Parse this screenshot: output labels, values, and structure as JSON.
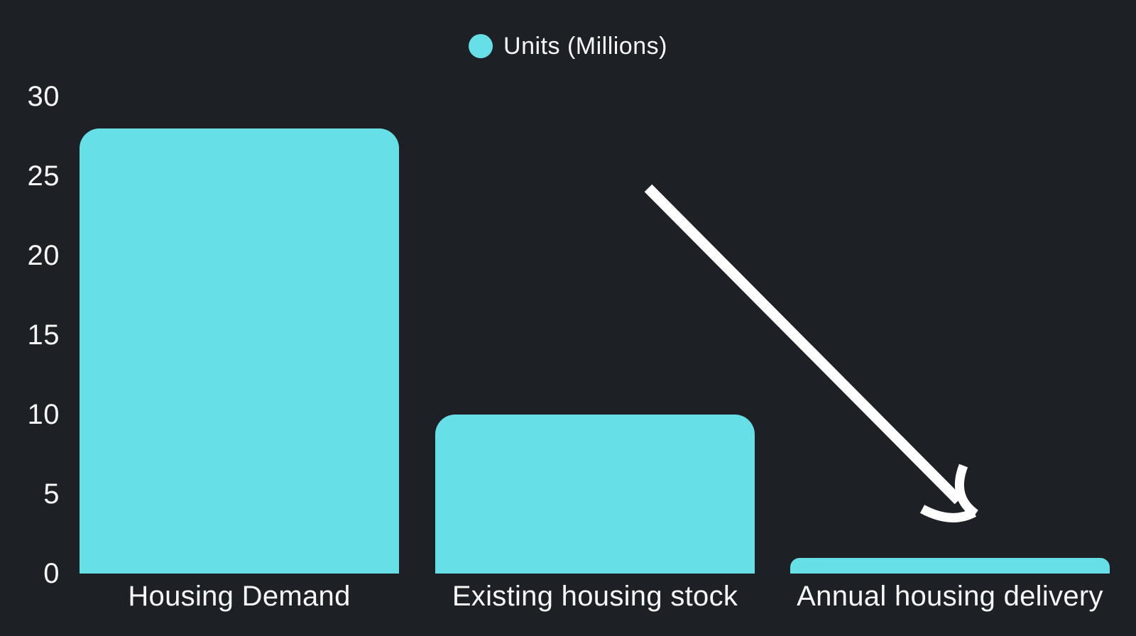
{
  "page": {
    "background_color": "#1d2126",
    "text_color": "#f7f7f7",
    "accent_color": "#66e0e6",
    "arrow_color": "#ffffff"
  },
  "chart_data": {
    "type": "bar",
    "title": "",
    "xlabel": "",
    "ylabel": "",
    "legend": {
      "label": "Units (Millions)",
      "marker_color": "#66e0e6",
      "position": "top-center"
    },
    "categories": [
      "Housing Demand",
      "Existing housing stock",
      "Annual housing delivery"
    ],
    "values": [
      28,
      10,
      1
    ],
    "bar_color": "#66e0e6",
    "ylim": [
      0,
      30
    ],
    "yticks": [
      30,
      25,
      20,
      15,
      10,
      5,
      0
    ],
    "grid": false,
    "annotations": [
      {
        "type": "arrow",
        "direction": "down-right",
        "color": "#ffffff",
        "points_to": "Annual housing delivery"
      }
    ]
  }
}
